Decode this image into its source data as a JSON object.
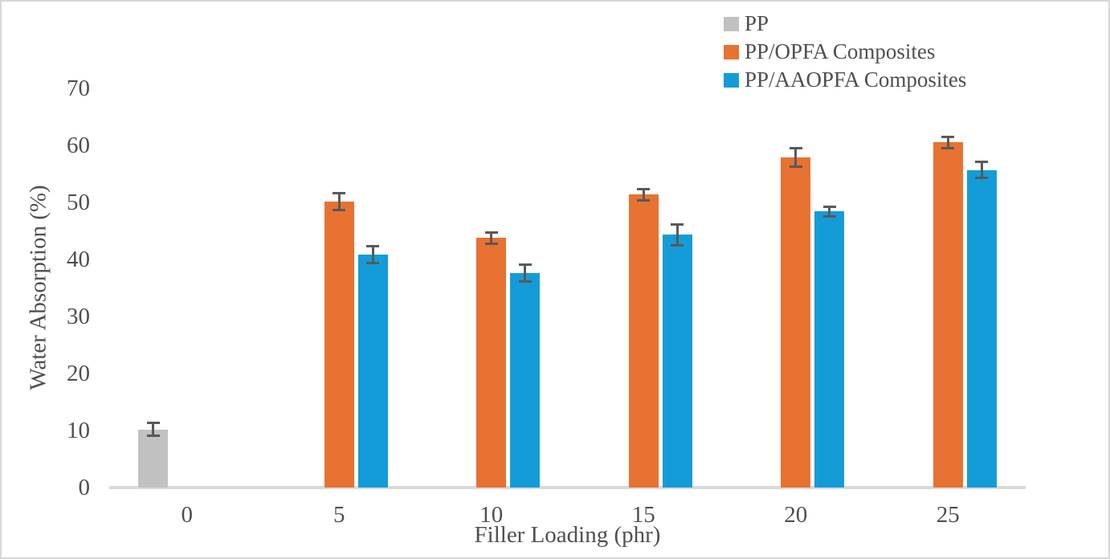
{
  "chart_data": {
    "type": "bar",
    "title": "",
    "xlabel": "Filler Loading (phr)",
    "ylabel": "Water Absorption (%)",
    "categories": [
      "0",
      "5",
      "10",
      "15",
      "20",
      "25"
    ],
    "series": [
      {
        "name": "PP",
        "color": "#c1c1c1",
        "values": [
          10.2,
          0,
          0,
          0,
          0,
          0
        ],
        "errors": [
          1.3,
          0,
          0,
          0,
          0,
          0
        ]
      },
      {
        "name": "PP/OPFA Composites",
        "color": "#e77231",
        "values": [
          0,
          50.2,
          43.8,
          51.4,
          57.9,
          60.5
        ],
        "errors": [
          0,
          1.7,
          1.2,
          1.2,
          1.8,
          1.2
        ]
      },
      {
        "name": "PP/AAOPFA Composites",
        "color": "#149cd8",
        "values": [
          0,
          40.9,
          37.6,
          44.3,
          48.4,
          55.7
        ],
        "errors": [
          0,
          1.7,
          1.7,
          2.0,
          1.1,
          1.6
        ]
      }
    ],
    "ylim": [
      0,
      70
    ],
    "ytick_step": 10,
    "grid": false,
    "legend_position": "top-right",
    "error_bars": true,
    "error_bar_color": "#595959",
    "axis_line_color": "#d9d9d9",
    "text_color": "#4f4f4f"
  }
}
